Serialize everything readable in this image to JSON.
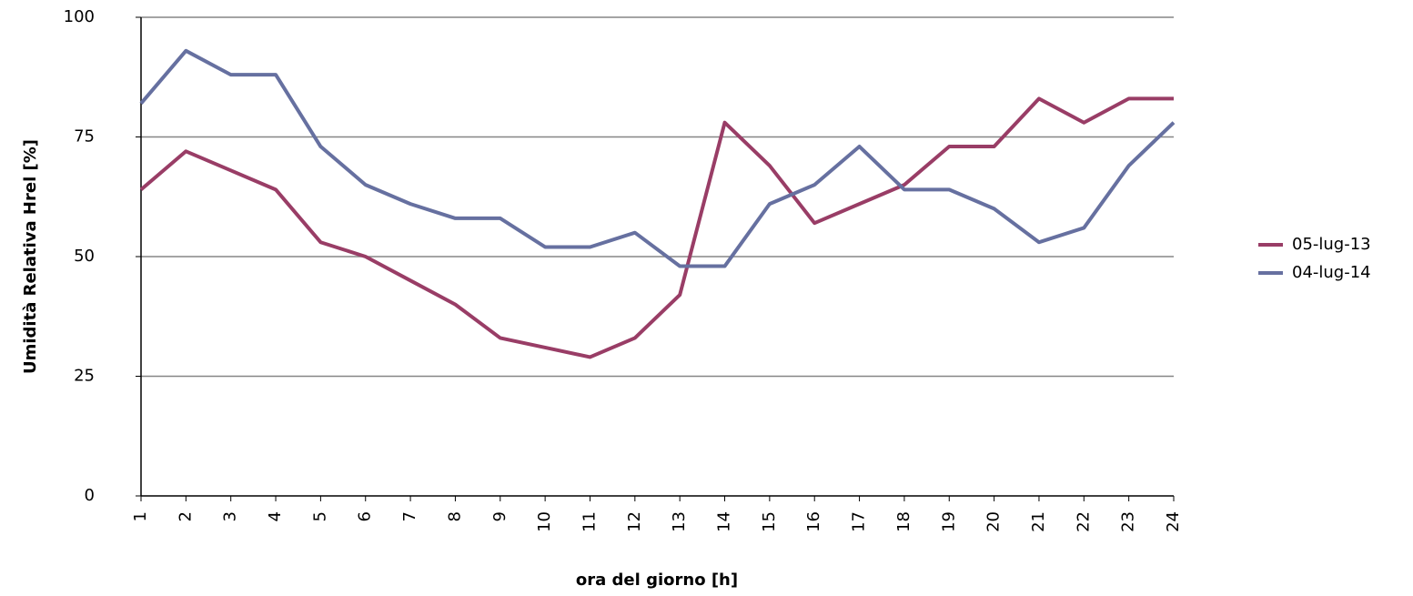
{
  "chart_data": {
    "type": "line",
    "x_label": "ora del giorno [h]",
    "y_label": "Umidità Relativa Hrel [%]",
    "categories": [
      "1",
      "2",
      "3",
      "4",
      "5",
      "6",
      "7",
      "8",
      "9",
      "10",
      "11",
      "12",
      "13",
      "14",
      "15",
      "16",
      "17",
      "18",
      "19",
      "20",
      "21",
      "22",
      "23",
      "24"
    ],
    "series": [
      {
        "name": "05-lug-13",
        "color": "#993d66",
        "values": [
          64,
          72,
          68,
          64,
          53,
          50,
          45,
          40,
          33,
          31,
          29,
          33,
          42,
          78,
          69,
          57,
          61,
          65,
          73,
          73,
          83,
          78,
          83,
          83
        ]
      },
      {
        "name": "04-lug-14",
        "color": "#6670a0",
        "values": [
          82,
          93,
          88,
          88,
          73,
          65,
          61,
          58,
          58,
          52,
          52,
          55,
          48,
          48,
          61,
          65,
          73,
          64,
          64,
          60,
          53,
          56,
          69,
          78
        ]
      }
    ],
    "ylim": [
      0,
      100
    ],
    "yticks": [
      0,
      25,
      50,
      75,
      100
    ],
    "grid": true,
    "legend": "right"
  }
}
